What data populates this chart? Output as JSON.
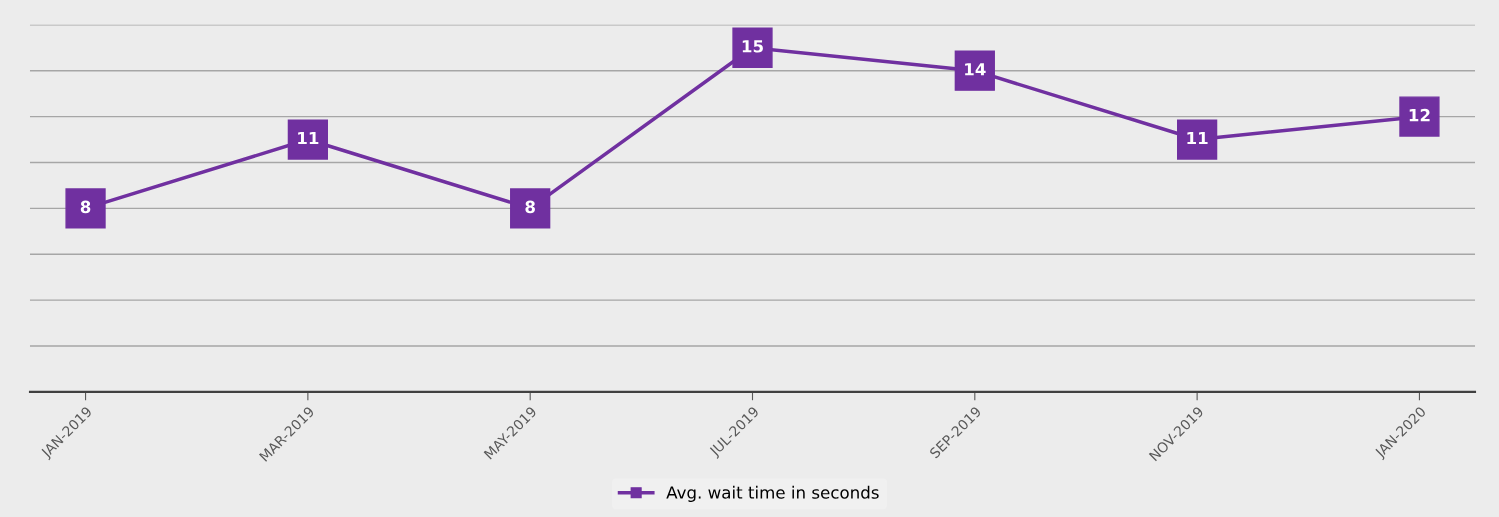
{
  "chart_data": {
    "type": "line",
    "categories": [
      "JAN-2019",
      "MAR-2019",
      "MAY-2019",
      "JUL-2019",
      "SEP-2019",
      "NOV-2019",
      "JAN-2020"
    ],
    "series": [
      {
        "name": "Avg. wait time in seconds",
        "color": "#7030a0",
        "values": [
          8,
          11,
          8,
          15,
          14,
          11,
          12
        ]
      }
    ],
    "ylim": [
      0,
      16
    ],
    "yticks": [
      {
        "value": 0,
        "label": null
      },
      {
        "value": 2,
        "label": null
      },
      {
        "value": 4,
        "label": null
      },
      {
        "value": 6,
        "label": null
      },
      {
        "value": 8,
        "label": null
      },
      {
        "value": 10,
        "label": null
      },
      {
        "value": 12,
        "label": null
      },
      {
        "value": 14,
        "label": null
      },
      {
        "value": 16,
        "label": null
      }
    ],
    "tick_labels": "x",
    "grid": "y",
    "legend": "bottom",
    "marker": "square",
    "line_style": "solid",
    "data_labels": true
  }
}
